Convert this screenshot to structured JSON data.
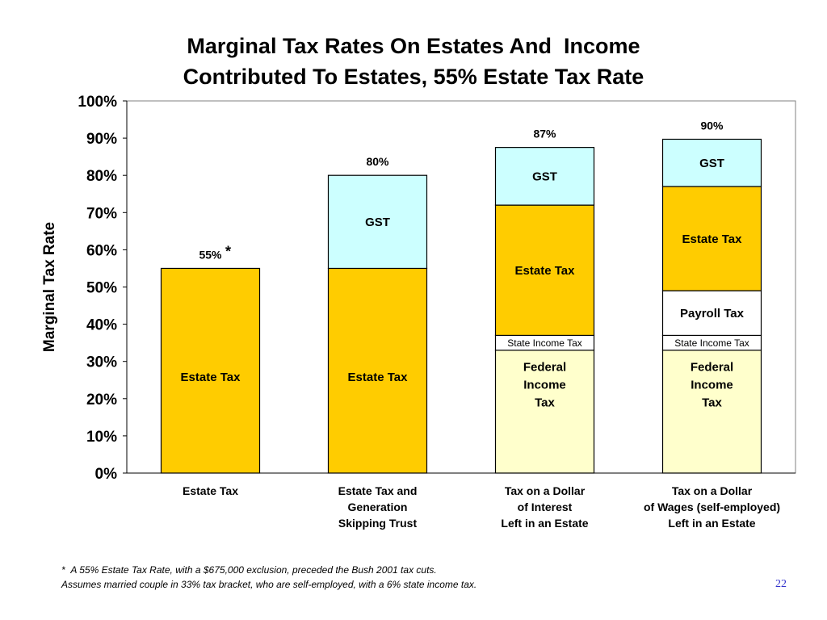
{
  "slide": {
    "title_line1": "Marginal Tax Rates On Estates And  Income",
    "title_line2": "Contributed To Estates, 55% Estate Tax Rate",
    "footnote_marker": "*",
    "footnote_line1": "A 55% Estate Tax Rate, with a $675,000 exclusion, preceded the Bush 2001 tax cuts.",
    "footnote_line2": "Assumes married couple in 33% tax bracket, who are self-employed, with a 6% state income tax.",
    "page_number": "22"
  },
  "chart_data": {
    "type": "bar",
    "stacked": true,
    "ylabel": "Marginal Tax Rate",
    "ylim": [
      0,
      100
    ],
    "yticks": [
      "0%",
      "10%",
      "20%",
      "30%",
      "40%",
      "50%",
      "60%",
      "70%",
      "80%",
      "90%",
      "100%"
    ],
    "colors": {
      "Federal Income Tax": "#ffffcc",
      "State Income Tax": "#ffffff",
      "Payroll Tax": "#ffffff",
      "Estate Tax": "#ffcc00",
      "GST": "#ccffff"
    },
    "bars": [
      {
        "category": [
          "Estate Tax"
        ],
        "total_label": "55%",
        "total_marker": "*",
        "segments": [
          {
            "name": "Estate Tax",
            "value": 55,
            "label": [
              "Estate Tax"
            ]
          }
        ]
      },
      {
        "category": [
          "Estate Tax and",
          "Generation",
          "Skipping Trust"
        ],
        "total_label": "80%",
        "segments": [
          {
            "name": "Estate Tax",
            "value": 55,
            "label": [
              "Estate Tax"
            ]
          },
          {
            "name": "GST",
            "value": 25,
            "label": [
              "GST"
            ]
          }
        ]
      },
      {
        "category": [
          "Tax on a Dollar",
          "of Interest",
          "Left in an Estate"
        ],
        "total_label": "87%",
        "segments": [
          {
            "name": "Federal Income Tax",
            "value": 33,
            "label": [
              "Federal",
              "Income",
              "Tax"
            ]
          },
          {
            "name": "State Income Tax",
            "value": 4,
            "label": [
              "State Income Tax"
            ]
          },
          {
            "name": "Estate Tax",
            "value": 35,
            "label": [
              "Estate Tax"
            ]
          },
          {
            "name": "GST",
            "value": 15.5,
            "label": [
              "GST"
            ]
          }
        ]
      },
      {
        "category": [
          "Tax on a Dollar",
          "of Wages (self-employed)",
          "Left in an Estate"
        ],
        "total_label": "90%",
        "segments": [
          {
            "name": "Federal Income Tax",
            "value": 33,
            "label": [
              "Federal",
              "Income",
              "Tax"
            ]
          },
          {
            "name": "State Income Tax",
            "value": 4,
            "label": [
              "State Income Tax"
            ]
          },
          {
            "name": "Payroll Tax",
            "value": 12,
            "label": [
              "Payroll Tax"
            ]
          },
          {
            "name": "Estate Tax",
            "value": 28,
            "label": [
              "Estate Tax"
            ]
          },
          {
            "name": "GST",
            "value": 12.7,
            "label": [
              "GST"
            ]
          }
        ]
      }
    ]
  }
}
